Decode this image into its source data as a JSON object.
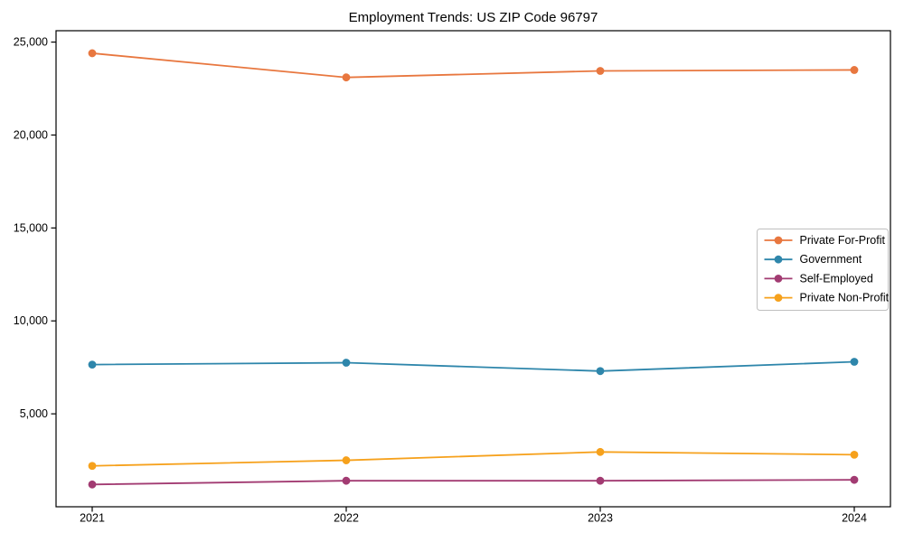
{
  "figure": {
    "title": "Employment Trends: US ZIP Code 96797",
    "background_color": "#ffffff",
    "axes_frame_color": "#000000",
    "legend_border_color": "#bfbfbf"
  },
  "chart_data": {
    "type": "line",
    "title": "Employment Trends: US ZIP Code 96797",
    "x": [
      2021,
      2022,
      2023,
      2024
    ],
    "x_tick_labels": [
      "2021",
      "2022",
      "2023",
      "2024"
    ],
    "y_ticks": [
      5000,
      10000,
      15000,
      20000,
      25000
    ],
    "y_tick_labels": [
      "5,000",
      "10,000",
      "15,000",
      "20,000",
      "25,000"
    ],
    "ylim": [
      0,
      25612
    ],
    "xlabel": "",
    "ylabel": "",
    "grid": false,
    "marker": "circle",
    "legend_position": "center-right",
    "series": [
      {
        "name": "Private For-Profit",
        "color": "#e8773f",
        "values": [
          24400,
          23100,
          23450,
          23500
        ]
      },
      {
        "name": "Government",
        "color": "#2e86ab",
        "values": [
          7650,
          7750,
          7300,
          7800
        ]
      },
      {
        "name": "Self-Employed",
        "color": "#a23b72",
        "values": [
          1200,
          1400,
          1400,
          1450
        ]
      },
      {
        "name": "Private Non-Profit",
        "color": "#f6a11c",
        "values": [
          2200,
          2500,
          2950,
          2800
        ]
      }
    ]
  }
}
